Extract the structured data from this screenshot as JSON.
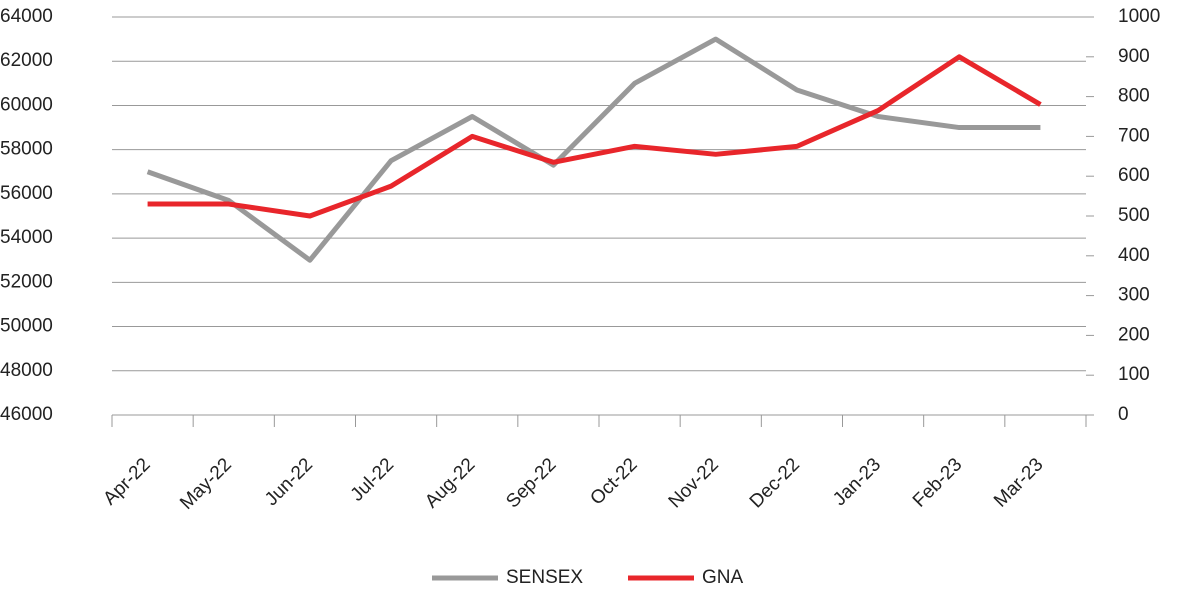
{
  "chart_data": {
    "type": "line",
    "categories": [
      "Apr-22",
      "May-22",
      "Jun-22",
      "Jul-22",
      "Aug-22",
      "Sep-22",
      "Oct-22",
      "Nov-22",
      "Dec-22",
      "Jan-23",
      "Feb-23",
      "Mar-23"
    ],
    "series": [
      {
        "name": "SENSEX",
        "color": "#999999",
        "values": [
          57000,
          55700,
          53000,
          57500,
          59500,
          57300,
          61000,
          63000,
          60700,
          59500,
          59000,
          59000
        ]
      },
      {
        "name": "GNA",
        "color": "#e8262b",
        "axis": "y2",
        "values": [
          530,
          530,
          500,
          575,
          700,
          635,
          675,
          655,
          675,
          765,
          900,
          780
        ]
      }
    ],
    "ylim": [
      46000,
      64000
    ],
    "yticks": [
      46000,
      48000,
      50000,
      52000,
      54000,
      56000,
      58000,
      60000,
      62000,
      64000
    ],
    "y2lim": [
      0,
      1000
    ],
    "y2ticks": [
      0,
      100,
      200,
      300,
      400,
      500,
      600,
      700,
      800,
      900,
      1000
    ],
    "grid": true,
    "legend": "bottom"
  }
}
